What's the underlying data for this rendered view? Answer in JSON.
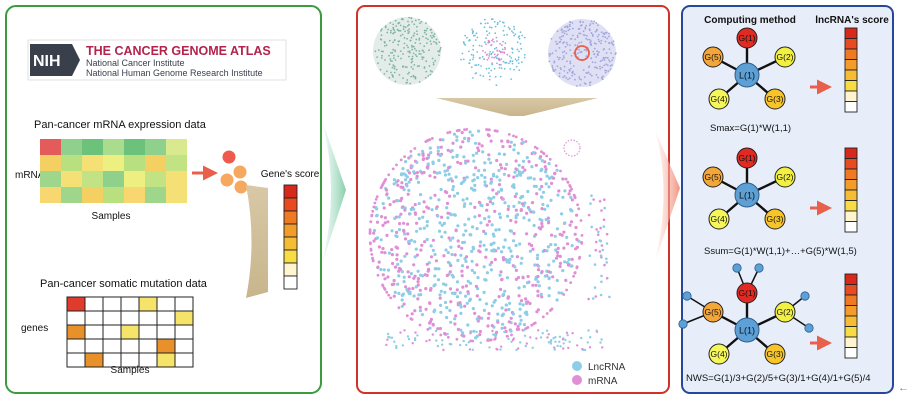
{
  "tcga": {
    "nih": "NIH",
    "title": "THE CANCER GENOME ATLAS",
    "line1": "National Cancer Institute",
    "line2": "National Human Genome Research Institute"
  },
  "left": {
    "mrna_heading": "Pan-cancer mRNA expression data",
    "mrna_row_label": "mRNAs",
    "mrna_col_label": "Samples",
    "mutation_heading": "Pan-cancer somatic mutation data",
    "mutation_row_label": "genes",
    "mutation_col_label": "Samples",
    "gene_score_label": "Gene's score"
  },
  "middle": {
    "legend": [
      {
        "label": "LncRNA",
        "color": "#8ecde6"
      },
      {
        "label": "mRNA",
        "color": "#e08fd6"
      }
    ]
  },
  "right": {
    "computing_method": "Computing method",
    "lnc_score": "lncRNA's score",
    "formulas": [
      "Smax=G(1)*W(1,1)",
      "Ssum=G(1)*W(1,1)+…+G(5)*W(1,5)",
      "NWS=G(1)/3+G(2)/5+G(3)/1+G(4)/1+G(5)/4"
    ],
    "center_node": "L(1)",
    "gene_nodes": [
      "G(1)",
      "G(2)",
      "G(3)",
      "G(4)",
      "G(5)"
    ]
  },
  "colors": {
    "left_border": "#3c9a40",
    "middle_border": "#d0322a",
    "right_border": "#27479c",
    "right_fill": "#e8eef9",
    "lncrna": "#8ecde6",
    "mrna": "#e08fd6",
    "arrow": "#e8604c"
  }
}
